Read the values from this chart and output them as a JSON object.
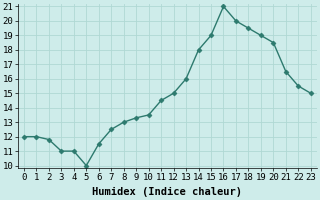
{
  "x": [
    0,
    1,
    2,
    3,
    4,
    5,
    6,
    7,
    8,
    9,
    10,
    11,
    12,
    13,
    14,
    15,
    16,
    17,
    18,
    19,
    20,
    21,
    22,
    23
  ],
  "y": [
    12,
    12,
    11.8,
    11,
    11,
    10,
    11.5,
    12.5,
    13,
    13.3,
    13.5,
    14.5,
    15,
    16,
    18,
    19,
    21,
    20,
    19.5,
    19,
    18.5,
    16.5,
    15.5,
    15
  ],
  "xlabel": "Humidex (Indice chaleur)",
  "ylim_min": 10,
  "ylim_max": 21,
  "xlim_min": -0.5,
  "xlim_max": 23.5,
  "yticks": [
    10,
    11,
    12,
    13,
    14,
    15,
    16,
    17,
    18,
    19,
    20,
    21
  ],
  "xticks": [
    0,
    1,
    2,
    3,
    4,
    5,
    6,
    7,
    8,
    9,
    10,
    11,
    12,
    13,
    14,
    15,
    16,
    17,
    18,
    19,
    20,
    21,
    22,
    23
  ],
  "line_color": "#2d7a6e",
  "marker_color": "#2d7a6e",
  "bg_color": "#ceecea",
  "grid_color": "#b0d8d4",
  "axis_label_fontsize": 7.5,
  "tick_fontsize": 6.5
}
